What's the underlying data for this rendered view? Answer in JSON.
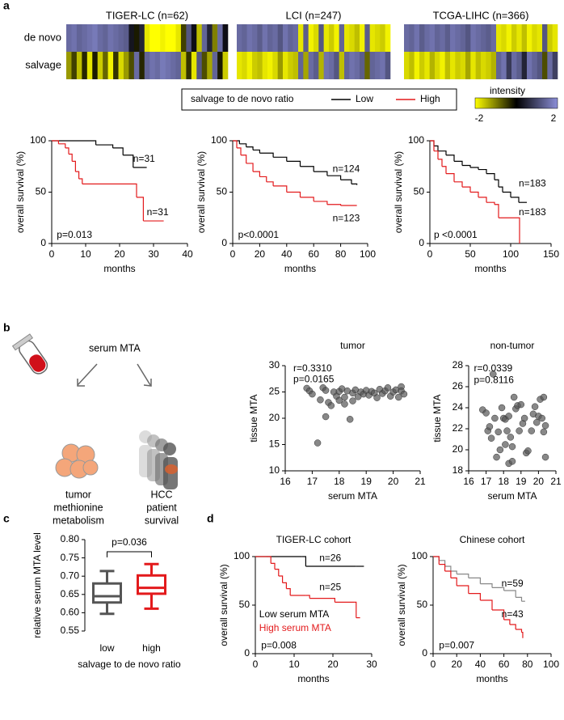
{
  "figure": {
    "panel_labels": [
      "a",
      "b",
      "c",
      "d"
    ],
    "legend": {
      "title": "salvage to de novo ratio",
      "series": [
        {
          "name": "Low",
          "color": "#000000"
        },
        {
          "name": "High",
          "color": "#e31a1c"
        }
      ]
    },
    "colorbar": {
      "title": "intensity",
      "lim": [
        -2,
        2
      ],
      "ticks": [
        -2,
        2
      ],
      "colors": [
        "#ffff00",
        "#000000",
        "#8c8fd8"
      ]
    },
    "illustration": {
      "serum": "serum MTA",
      "left": [
        "tumor",
        "methionine",
        "metabolism"
      ],
      "right": [
        "HCC",
        "patient",
        "survival"
      ]
    }
  },
  "chart_data": [
    {
      "type": "heatmap",
      "title": "TIGER-LC (n=62)",
      "row_labels": [
        "de novo",
        "salvage"
      ],
      "values": [
        [
          1.5,
          1.6,
          1.4,
          1.5,
          1.6,
          1.7,
          1.5,
          1.4,
          1.6,
          1.5,
          1.4,
          1.3,
          0.3,
          -0.2,
          0.5,
          -1.8,
          -2,
          -2,
          -1.9,
          -2,
          -2,
          -1.8,
          -0.5,
          1.2,
          0.2,
          -1.5,
          1.4,
          0.5,
          -1,
          1.5,
          0.2
        ],
        [
          -1.2,
          -0.5,
          -1.5,
          -0.3,
          -1.8,
          -0.2,
          -1.6,
          -0.8,
          -1.9,
          -0.4,
          -1.7,
          -1.2,
          -0.6,
          1.5,
          -0.3,
          1.4,
          1.6,
          1.5,
          1.7,
          1.6,
          1.5,
          1.4,
          -1.5,
          -0.4,
          -1.8,
          1.2,
          -0.6,
          -1.3,
          1.4,
          -0.2,
          -1.6
        ]
      ]
    },
    {
      "type": "heatmap",
      "title": "LCI (n=247)",
      "values": [
        [
          1.5,
          1.4,
          1.6,
          1.5,
          1.3,
          1.6,
          1.4,
          1.5,
          1.2,
          1.6,
          1.4,
          1.5,
          -1.8,
          1.3,
          -1.9,
          -1.7,
          1.2,
          -1.8,
          -1.6,
          -1.9,
          1.4,
          -1.8,
          -1.7,
          -1.5,
          -1.9,
          1.3,
          -1.8,
          -1.7,
          -1.6,
          -1.9
        ],
        [
          -1.8,
          -1.7,
          -1.9,
          -1.6,
          -1.5,
          -1.8,
          -1.9,
          -1.7,
          -1.2,
          -1.8,
          -1.6,
          -1.5,
          1.4,
          -1.3,
          1.5,
          1.3,
          -1.4,
          1.6,
          1.5,
          1.2,
          -1.5,
          1.4,
          1.6,
          1.5,
          1.3,
          -0.8,
          1.4,
          1.5,
          1.6,
          1.2
        ]
      ]
    },
    {
      "type": "heatmap",
      "title": "TCGA-LIHC (n=366)",
      "values": [
        [
          1.5,
          1.4,
          1.6,
          1.3,
          1.5,
          1.6,
          1.4,
          1.5,
          1.3,
          1.6,
          1.5,
          1.4,
          1.2,
          1.6,
          1.5,
          1.4,
          1.3,
          1.5,
          -1.8,
          -1.7,
          -1.9,
          -1.6,
          -1.8,
          -1.5,
          -1.9,
          -1.7,
          -1.8,
          1.2,
          -1.6,
          -1.8
        ],
        [
          -1.7,
          -1.5,
          -1.9,
          -1.6,
          -1.8,
          -1.4,
          -1.7,
          -1.9,
          -1.5,
          -1.8,
          -1.6,
          -1.7,
          -1.3,
          -1.8,
          -1.5,
          -1.7,
          -1.6,
          -1.4,
          1.4,
          1.6,
          0.8,
          1.5,
          1.3,
          0.5,
          1.6,
          1.4,
          1.2,
          -0.6,
          1.5,
          0.9
        ]
      ]
    },
    {
      "type": "km",
      "xlabel": "months",
      "ylabel": "overall survival (%)",
      "xlim": [
        0,
        40
      ],
      "xticks": [
        0,
        10,
        20,
        30,
        40
      ],
      "ylim": [
        0,
        100
      ],
      "yticks": [
        0,
        50,
        100
      ],
      "series": [
        {
          "color": "#000000",
          "x": [
            0,
            13,
            18,
            21,
            24,
            28
          ],
          "values": [
            100,
            96,
            93,
            86,
            74,
            74
          ]
        },
        {
          "color": "#e31a1c",
          "x": [
            0,
            2,
            4,
            5,
            6,
            7,
            8,
            9,
            25,
            27,
            33
          ],
          "values": [
            100,
            97,
            93,
            87,
            80,
            70,
            63,
            58,
            45,
            22,
            22
          ]
        }
      ],
      "annotations": [
        "n=31",
        "n=31",
        "p=0.013"
      ]
    },
    {
      "type": "km",
      "xlabel": "months",
      "ylabel": "overall survival (%)",
      "xlim": [
        0,
        100
      ],
      "xticks": [
        0,
        20,
        40,
        60,
        80,
        100
      ],
      "ylim": [
        0,
        100
      ],
      "yticks": [
        0,
        50,
        100
      ],
      "series": [
        {
          "color": "#000000",
          "x": [
            0,
            5,
            10,
            15,
            20,
            30,
            40,
            50,
            60,
            70,
            80,
            88,
            92
          ],
          "values": [
            100,
            97,
            94,
            91,
            88,
            84,
            80,
            75,
            70,
            66,
            62,
            58,
            57
          ]
        },
        {
          "color": "#e31a1c",
          "x": [
            0,
            3,
            6,
            10,
            15,
            20,
            25,
            30,
            40,
            50,
            60,
            70,
            80,
            92
          ],
          "values": [
            100,
            93,
            86,
            78,
            70,
            65,
            60,
            56,
            50,
            45,
            41,
            38,
            37,
            37
          ]
        }
      ],
      "annotations": [
        "n=124",
        "n=123",
        "p<0.0001"
      ]
    },
    {
      "type": "km",
      "xlabel": "months",
      "ylabel": "overall survival (%)",
      "xlim": [
        0,
        150
      ],
      "xticks": [
        0,
        50,
        100,
        150
      ],
      "ylim": [
        0,
        100
      ],
      "yticks": [
        0,
        50,
        100
      ],
      "series": [
        {
          "color": "#000000",
          "x": [
            0,
            5,
            10,
            20,
            30,
            40,
            50,
            60,
            70,
            80,
            85,
            90,
            100,
            110,
            120
          ],
          "values": [
            100,
            95,
            90,
            86,
            80,
            76,
            74,
            72,
            68,
            62,
            55,
            50,
            45,
            40,
            40
          ]
        },
        {
          "color": "#e31a1c",
          "x": [
            0,
            5,
            10,
            15,
            20,
            30,
            40,
            50,
            60,
            70,
            80,
            85,
            110,
            111
          ],
          "values": [
            100,
            90,
            82,
            75,
            68,
            60,
            55,
            50,
            45,
            40,
            38,
            25,
            25,
            0
          ]
        }
      ],
      "annotations": [
        "n=183",
        "n=183",
        "p <0.0001"
      ]
    },
    {
      "type": "scatter",
      "title": "tumor",
      "xlabel": "serum MTA",
      "ylabel": "tissue MTA",
      "xlim": [
        16,
        21
      ],
      "xticks": [
        16,
        17,
        18,
        19,
        20,
        21
      ],
      "ylim": [
        10,
        30
      ],
      "yticks": [
        10,
        15,
        20,
        25,
        30
      ],
      "color": "#555555",
      "x": [
        16.8,
        16.9,
        17.0,
        17.2,
        17.3,
        17.4,
        17.5,
        17.5,
        17.6,
        17.7,
        17.8,
        17.9,
        18.0,
        18.0,
        18.1,
        18.2,
        18.2,
        18.3,
        18.4,
        18.5,
        18.5,
        18.6,
        18.7,
        18.8,
        18.9,
        19.0,
        19.1,
        19.2,
        19.3,
        19.4,
        19.5,
        19.6,
        19.7,
        19.8,
        19.9,
        20.0,
        20.1,
        20.2,
        20.3,
        20.3,
        20.4
      ],
      "values": [
        25.7,
        25.2,
        24.6,
        15.3,
        23.5,
        25.8,
        25.3,
        20.3,
        23.0,
        22.4,
        25.0,
        24.2,
        25.1,
        23.4,
        25.6,
        24.0,
        22.7,
        25.2,
        19.8,
        24.8,
        23.3,
        25.4,
        24.1,
        25.0,
        24.6,
        25.3,
        24.4,
        25.1,
        24.8,
        23.9,
        25.5,
        24.7,
        25.2,
        25.8,
        24.2,
        25.0,
        25.4,
        24.0,
        26.0,
        25.2,
        24.6
      ],
      "annotations": [
        "r=0.3310",
        "p=0.0165"
      ]
    },
    {
      "type": "scatter",
      "title": "non-tumor",
      "xlabel": "serum MTA",
      "ylabel": "tissue MTA",
      "xlim": [
        16,
        21
      ],
      "xticks": [
        16,
        17,
        18,
        19,
        20,
        21
      ],
      "ylim": [
        18,
        28
      ],
      "yticks": [
        18,
        20,
        22,
        24,
        26,
        28
      ],
      "color": "#555555",
      "x": [
        16.8,
        17.0,
        17.1,
        17.2,
        17.3,
        17.4,
        17.5,
        17.6,
        17.7,
        17.8,
        17.9,
        18.0,
        18.1,
        18.1,
        18.2,
        18.3,
        18.3,
        18.4,
        18.5,
        18.5,
        18.6,
        18.7,
        18.8,
        18.9,
        19.0,
        19.1,
        19.2,
        19.3,
        19.4,
        19.6,
        19.7,
        19.8,
        19.9,
        20.0,
        20.1,
        20.2,
        20.3,
        20.3,
        20.4,
        20.4
      ],
      "values": [
        23.8,
        23.5,
        21.8,
        22.2,
        21.1,
        27.2,
        23.0,
        19.3,
        21.7,
        20.0,
        24.0,
        23.0,
        22.9,
        20.5,
        21.8,
        23.2,
        18.7,
        21.2,
        20.3,
        18.9,
        25.0,
        23.9,
        24.2,
        21.8,
        24.3,
        22.5,
        23.0,
        19.7,
        19.9,
        21.8,
        23.4,
        24.1,
        22.6,
        23.2,
        24.8,
        23.0,
        21.7,
        25.0,
        19.3,
        22.3
      ],
      "annotations": [
        "r=0.0339",
        "p=0.8116"
      ]
    },
    {
      "type": "box",
      "ylabel": "relative serum MTA level",
      "xlabel": "salvage to de novo ratio",
      "categories": [
        "low",
        "high"
      ],
      "colors": [
        "#555555",
        "#e31a1c"
      ],
      "ylim": [
        0.55,
        0.8
      ],
      "yticks": [
        0.55,
        {
          "value": 0.6,
          "label": "0.60"
        },
        0.65,
        {
          "value": 0.7,
          "label": "0.70"
        },
        0.75,
        {
          "value": 0.8,
          "label": "0.80"
        }
      ],
      "boxes": [
        {
          "min": 0.597,
          "q1": 0.628,
          "median": 0.645,
          "q3": 0.68,
          "max": 0.714
        },
        {
          "min": 0.611,
          "q1": 0.652,
          "median": 0.668,
          "q3": 0.702,
          "max": 0.733
        }
      ],
      "annotations": [
        "p=0.036"
      ]
    },
    {
      "type": "km",
      "title": "TIGER-LC cohort",
      "xlabel": "months",
      "ylabel": "overall survival (%)",
      "xlim": [
        0,
        30
      ],
      "xticks": [
        0,
        10,
        20,
        30
      ],
      "ylim": [
        0,
        100
      ],
      "yticks": [
        0,
        50,
        100
      ],
      "series": [
        {
          "name": "Low serum MTA",
          "color": "#000000",
          "x": [
            0,
            12,
            13,
            26,
            28
          ],
          "values": [
            100,
            100,
            90,
            90,
            90
          ]
        },
        {
          "name": "High serum MTA",
          "color": "#e31a1c",
          "x": [
            0,
            3,
            4,
            5,
            6,
            7,
            8,
            9,
            13,
            14,
            20,
            20.5,
            25.5,
            26,
            27
          ],
          "values": [
            100,
            100,
            93,
            87,
            80,
            73,
            67,
            60,
            60,
            57,
            57,
            53,
            53,
            37,
            37
          ]
        }
      ],
      "annotations": [
        "n=26",
        "n=25",
        "p=0.008"
      ]
    },
    {
      "type": "km",
      "title": "Chinese cohort",
      "xlabel": "months",
      "ylabel": "overall survival (%)",
      "xlim": [
        0,
        100
      ],
      "xticks": [
        0,
        20,
        40,
        60,
        80,
        100
      ],
      "ylim": [
        0,
        100
      ],
      "yticks": [
        0,
        50,
        100
      ],
      "series": [
        {
          "color": "#888888",
          "x": [
            0,
            5,
            10,
            15,
            20,
            30,
            40,
            50,
            60,
            70,
            75,
            78
          ],
          "values": [
            100,
            96,
            90,
            85,
            82,
            78,
            72,
            68,
            65,
            58,
            54,
            54
          ]
        },
        {
          "color": "#e31a1c",
          "x": [
            0,
            5,
            10,
            15,
            20,
            30,
            40,
            50,
            60,
            65,
            70,
            75,
            76
          ],
          "values": [
            100,
            92,
            85,
            78,
            70,
            62,
            55,
            45,
            35,
            30,
            25,
            22,
            16
          ]
        }
      ],
      "annotations": [
        "n=59",
        "n=43",
        "p=0.007"
      ]
    }
  ]
}
